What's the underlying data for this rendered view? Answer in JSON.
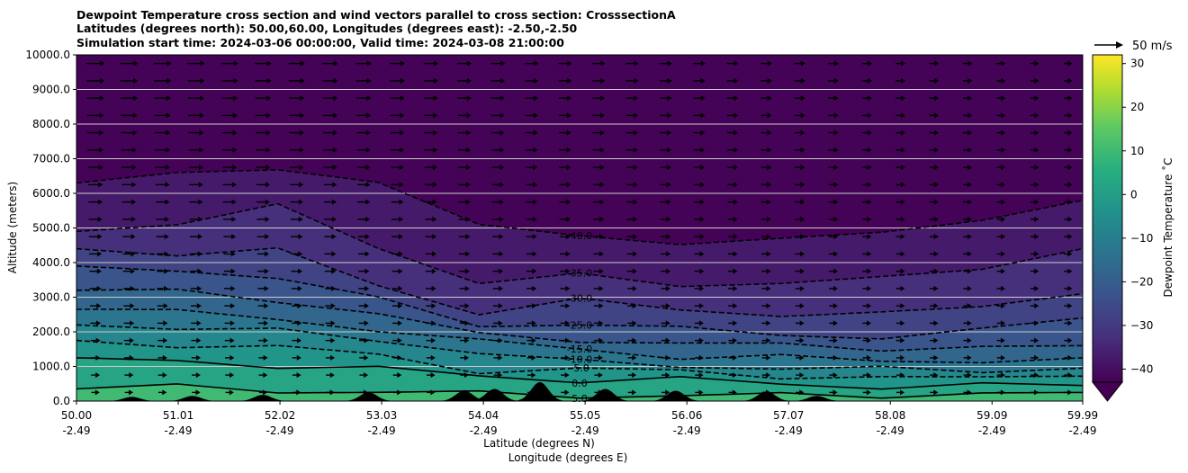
{
  "chart_data": {
    "type": "heatmap",
    "title_lines": [
      "Dewpoint Temperature cross section and wind vectors parallel to cross section: CrosssectionA",
      "Latitudes (degrees north): 50.00,60.00, Longitudes (degrees east): -2.50,-2.50",
      "Simulation start time: 2024-03-06 00:00:00, Valid time: 2024-03-08 21:00:00"
    ],
    "ylabel": "Altitude (meters)",
    "xlabel_lines": [
      "Latitude (degrees N)",
      "Longitude (degrees E)"
    ],
    "ylim": [
      0,
      10000
    ],
    "xlim": [
      50.0,
      59.99
    ],
    "yticks": [
      "0.0",
      "1000.0",
      "2000.0",
      "3000.0",
      "4000.0",
      "5000.0",
      "6000.0",
      "7000.0",
      "8000.0",
      "9000.0",
      "10000.0"
    ],
    "xticks": [
      {
        "lat": "50.00",
        "lon": "-2.49"
      },
      {
        "lat": "51.01",
        "lon": "-2.49"
      },
      {
        "lat": "52.02",
        "lon": "-2.49"
      },
      {
        "lat": "53.03",
        "lon": "-2.49"
      },
      {
        "lat": "54.04",
        "lon": "-2.49"
      },
      {
        "lat": "55.05",
        "lon": "-2.49"
      },
      {
        "lat": "56.06",
        "lon": "-2.49"
      },
      {
        "lat": "57.07",
        "lon": "-2.49"
      },
      {
        "lat": "58.08",
        "lon": "-2.49"
      },
      {
        "lat": "59.09",
        "lon": "-2.49"
      },
      {
        "lat": "59.99",
        "lon": "-2.49"
      }
    ],
    "colorbar": {
      "label": "Dewpoint Temperature ˚C",
      "range": [
        -43,
        32
      ],
      "ticks": [
        "30",
        "20",
        "10",
        "0",
        "−10",
        "−20",
        "−30",
        "−40"
      ],
      "extend": "min"
    },
    "wind_key": "50 m/s",
    "contours": [
      {
        "level": 5.0,
        "label": "5.0",
        "alt": [
          350,
          400,
          330,
          250,
          200,
          180,
          150,
          150,
          180,
          230,
          250
        ]
      },
      {
        "level": 0.0,
        "label": "0.0",
        "alt": [
          1250,
          1200,
          1020,
          900,
          760,
          600,
          600,
          520,
          420,
          420,
          450
        ]
      },
      {
        "level": -5.0,
        "label": "-5.0",
        "alt": [
          1750,
          1650,
          1550,
          1300,
          900,
          900,
          850,
          750,
          650,
          650,
          720
        ]
      },
      {
        "level": -10.0,
        "label": "-10.0",
        "alt": [
          2200,
          2100,
          2000,
          1800,
          1400,
          1100,
          1050,
          950,
          900,
          900,
          950
        ]
      },
      {
        "level": -15.0,
        "label": "-15.0",
        "alt": [
          2650,
          2550,
          2350,
          2100,
          1700,
          1500,
          1300,
          1250,
          1150,
          1200,
          1250
        ]
      },
      {
        "level": -20.0,
        "label": "",
        "alt": [
          3200,
          3150,
          2950,
          2500,
          1900,
          1800,
          1650,
          1600,
          1550,
          1550,
          1600
        ]
      },
      {
        "level": -25.0,
        "label": "-25.0",
        "alt": [
          3900,
          3800,
          3600,
          2900,
          2200,
          2250,
          2050,
          1950,
          1850,
          2000,
          2400
        ]
      },
      {
        "level": -30.0,
        "label": "-30.0",
        "alt": [
          4400,
          4300,
          4350,
          3300,
          2600,
          2900,
          2600,
          2550,
          2500,
          2700,
          3100
        ]
      },
      {
        "level": -35.0,
        "label": "-35.0",
        "alt": [
          4900,
          5100,
          5600,
          4500,
          3400,
          3600,
          3400,
          3400,
          3500,
          3900,
          4400
        ]
      },
      {
        "level": -40.0,
        "label": "-40.0",
        "alt": [
          6300,
          6500,
          6700,
          6400,
          5000,
          4800,
          4600,
          4600,
          4900,
          5300,
          5800
        ]
      }
    ],
    "terrain_peaks_lat": [
      50.55,
      51.15,
      51.85,
      52.9,
      53.85,
      54.15,
      54.6,
      55.25,
      55.95,
      56.85,
      57.35
    ],
    "terrain_peaks_alt": [
      120,
      150,
      180,
      250,
      300,
      350,
      550,
      350,
      300,
      280,
      150
    ]
  }
}
